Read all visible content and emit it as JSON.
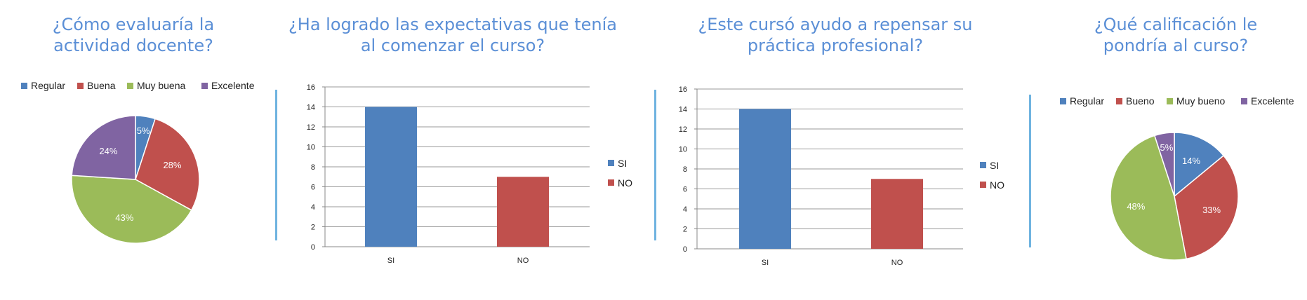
{
  "colors": {
    "blue": "#4f81bd",
    "red": "#c0504d",
    "green": "#9bbb59",
    "purple": "#8064a2",
    "title": "#5b8fd6",
    "divider": "#6fb3e0"
  },
  "chart_data": [
    {
      "type": "pie",
      "title": "¿Cómo evaluaría la actividad docente?",
      "title_lines": [
        "¿Cómo evaluaría la",
        "actividad docente?"
      ],
      "categories": [
        "Regular",
        "Buena",
        "Muy buena",
        "Excelente"
      ],
      "values": [
        5,
        28,
        43,
        24
      ],
      "labels": [
        "5%",
        "28%",
        "43%",
        "24%"
      ],
      "colors": [
        "#4f81bd",
        "#c0504d",
        "#9bbb59",
        "#8064a2"
      ],
      "legend": "top"
    },
    {
      "type": "bar",
      "title": "¿Ha logrado las expectativas que tenía al comenzar el curso?",
      "title_lines": [
        "¿Ha logrado las expectativas que tenía",
        "al comenzar el curso?"
      ],
      "categories": [
        "SI",
        "NO"
      ],
      "values": [
        14,
        7
      ],
      "colors": [
        "#4f81bd",
        "#c0504d"
      ],
      "ylim": [
        0,
        16
      ],
      "yticks": [
        "0",
        "2",
        "4",
        "6",
        "8",
        "10",
        "12",
        "14",
        "16"
      ],
      "grid": true,
      "legend": "right"
    },
    {
      "type": "bar",
      "title": "¿Este cursó ayudo a repensar su práctica profesional?",
      "title_lines": [
        "¿Este cursó ayudo a repensar su",
        "práctica profesional?"
      ],
      "categories": [
        "SI",
        "NO"
      ],
      "values": [
        14,
        7
      ],
      "colors": [
        "#4f81bd",
        "#c0504d"
      ],
      "ylim": [
        0,
        16
      ],
      "yticks": [
        "0",
        "2",
        "4",
        "6",
        "8",
        "10",
        "12",
        "14",
        "16"
      ],
      "grid": true,
      "legend": "right"
    },
    {
      "type": "pie",
      "title": "¿Qué calificación le pondría al curso?",
      "title_lines": [
        "¿Qué calificación le",
        "pondría al curso?"
      ],
      "categories": [
        "Regular",
        "Bueno",
        "Muy bueno",
        "Excelente"
      ],
      "values": [
        14,
        33,
        48,
        5
      ],
      "labels": [
        "14%",
        "33%",
        "48%",
        "5%"
      ],
      "colors": [
        "#4f81bd",
        "#c0504d",
        "#9bbb59",
        "#8064a2"
      ],
      "legend": "top"
    }
  ]
}
